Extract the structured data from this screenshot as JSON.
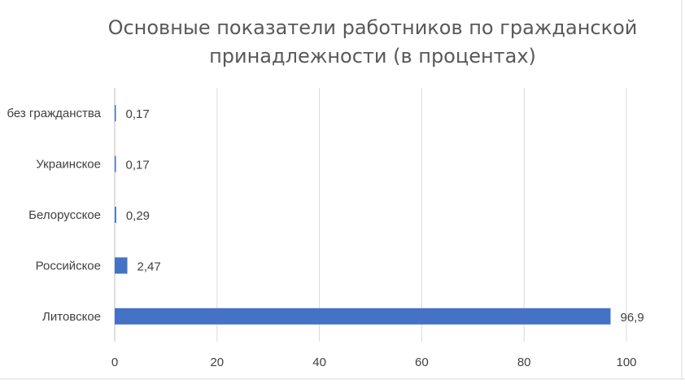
{
  "chart_data": {
    "type": "bar",
    "orientation": "horizontal",
    "title_lines": [
      "Основные показатели работников по гражданской",
      "принадлежности (в процентах)"
    ],
    "categories": [
      "Литовское",
      "Российское",
      "Белорусское",
      "Украинское",
      "без гражданства"
    ],
    "values": [
      96.9,
      2.47,
      0.29,
      0.17,
      0.17
    ],
    "value_labels": [
      "96,9",
      "2,47",
      "0,29",
      "0,17",
      "0,17"
    ],
    "x_ticks": [
      "0",
      "20",
      "40",
      "60",
      "80",
      "100"
    ],
    "xlim": [
      0,
      100
    ],
    "grid": true,
    "legend": "none",
    "bar_color": "#4472C4"
  }
}
